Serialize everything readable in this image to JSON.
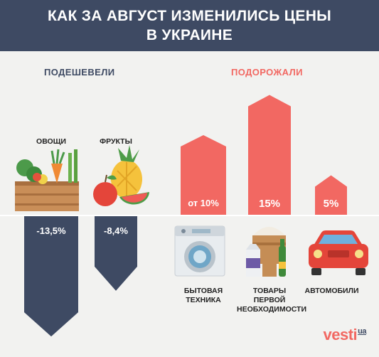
{
  "header": {
    "line1": "КАК ЗА АВГУСТ ИЗМЕНИЛИСЬ ЦЕНЫ",
    "line2": "В УКРАИНЕ"
  },
  "sections": {
    "down": "ПОДЕШЕВЕЛИ",
    "up": "ПОДОРОЖАЛИ"
  },
  "brand": {
    "name": "vesti",
    "suffix": "ua"
  },
  "colors": {
    "header_bg": "#3e4a63",
    "decrease": "#3e4a63",
    "increase": "#f26862",
    "background": "#f2f2f0"
  },
  "icons": [
    "vegetable-crate-icon",
    "fruits-icon",
    "washing-machine-icon",
    "groceries-icon",
    "car-icon"
  ],
  "chart_data": {
    "type": "bar",
    "title": "КАК ЗА АВГУСТ ИЗМЕНИЛИСЬ ЦЕНЫ В УКРАИНЕ",
    "unit": "%",
    "grid": false,
    "categories": [
      "ОВОЩИ",
      "ФРУКТЫ",
      "БЫТОВАЯ ТЕХНИКА",
      "ТОВАРЫ ПЕРВОЙ НЕОБХОДИМОСТИ",
      "АВТОМОБИЛИ"
    ],
    "values": [
      -13.5,
      -8.4,
      10,
      15,
      5
    ],
    "value_labels": [
      "-13,5%",
      "-8,4%",
      "от 10%",
      "15%",
      "5%"
    ],
    "groups": [
      "ПОДЕШЕВЕЛИ",
      "ПОДЕШЕВЕЛИ",
      "ПОДОРОЖАЛИ",
      "ПОДОРОЖАЛИ",
      "ПОДОРОЖАЛИ"
    ]
  }
}
